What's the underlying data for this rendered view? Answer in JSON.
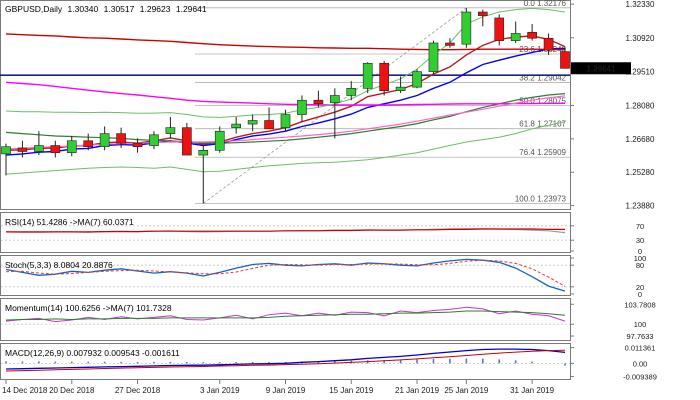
{
  "chart_data": {
    "type": "candlestick",
    "symbol_title": "GBPUSD,Daily",
    "ohlc_text": [
      "1.30340",
      "1.30517",
      "1.29623",
      "1.29641"
    ],
    "current_price": "1.29641",
    "price_axis": {
      "ylim": [
        1.2378,
        1.3242
      ],
      "ticks": [
        "1.32330",
        "1.30920",
        "1.29510",
        "1.28080",
        "1.26680",
        "1.25280",
        "1.23880"
      ]
    },
    "date_labels": [
      "14 Dec 2018",
      "20 Dec 2018",
      "27 Dec 2018",
      "3 Jan 2019",
      "9 Jan 2019",
      "15 Jan 2019",
      "21 Jan 2019",
      "25 Jan 2019",
      "31 Jan 2019"
    ],
    "candles": [
      {
        "o": 1.2605,
        "h": 1.2648,
        "l": 1.2515,
        "c": 1.2635
      },
      {
        "o": 1.263,
        "h": 1.266,
        "l": 1.259,
        "c": 1.2615
      },
      {
        "o": 1.2615,
        "h": 1.27,
        "l": 1.26,
        "c": 1.264
      },
      {
        "o": 1.264,
        "h": 1.266,
        "l": 1.259,
        "c": 1.261
      },
      {
        "o": 1.261,
        "h": 1.268,
        "l": 1.2595,
        "c": 1.266
      },
      {
        "o": 1.266,
        "h": 1.269,
        "l": 1.262,
        "c": 1.2635
      },
      {
        "o": 1.2635,
        "h": 1.272,
        "l": 1.262,
        "c": 1.269
      },
      {
        "o": 1.269,
        "h": 1.2715,
        "l": 1.263,
        "c": 1.265
      },
      {
        "o": 1.265,
        "h": 1.267,
        "l": 1.261,
        "c": 1.2635
      },
      {
        "o": 1.264,
        "h": 1.27,
        "l": 1.2625,
        "c": 1.2685
      },
      {
        "o": 1.269,
        "h": 1.276,
        "l": 1.267,
        "c": 1.2715
      },
      {
        "o": 1.2715,
        "h": 1.2735,
        "l": 1.26,
        "c": 1.26
      },
      {
        "o": 1.26,
        "h": 1.264,
        "l": 1.2397,
        "c": 1.262
      },
      {
        "o": 1.262,
        "h": 1.272,
        "l": 1.261,
        "c": 1.27
      },
      {
        "o": 1.2715,
        "h": 1.276,
        "l": 1.269,
        "c": 1.273
      },
      {
        "o": 1.273,
        "h": 1.277,
        "l": 1.27,
        "c": 1.2745
      },
      {
        "o": 1.2745,
        "h": 1.28,
        "l": 1.271,
        "c": 1.271
      },
      {
        "o": 1.2715,
        "h": 1.279,
        "l": 1.27,
        "c": 1.277
      },
      {
        "o": 1.277,
        "h": 1.285,
        "l": 1.274,
        "c": 1.283
      },
      {
        "o": 1.283,
        "h": 1.287,
        "l": 1.28,
        "c": 1.2815
      },
      {
        "o": 1.282,
        "h": 1.288,
        "l": 1.267,
        "c": 1.285
      },
      {
        "o": 1.285,
        "h": 1.291,
        "l": 1.283,
        "c": 1.288
      },
      {
        "o": 1.288,
        "h": 1.299,
        "l": 1.286,
        "c": 1.2985
      },
      {
        "o": 1.2985,
        "h": 1.2995,
        "l": 1.285,
        "c": 1.287
      },
      {
        "o": 1.287,
        "h": 1.293,
        "l": 1.286,
        "c": 1.2885
      },
      {
        "o": 1.2885,
        "h": 1.296,
        "l": 1.288,
        "c": 1.295
      },
      {
        "o": 1.295,
        "h": 1.308,
        "l": 1.294,
        "c": 1.307
      },
      {
        "o": 1.307,
        "h": 1.309,
        "l": 1.305,
        "c": 1.306
      },
      {
        "o": 1.3065,
        "h": 1.3217,
        "l": 1.305,
        "c": 1.32
      },
      {
        "o": 1.32,
        "h": 1.321,
        "l": 1.314,
        "c": 1.3185
      },
      {
        "o": 1.3175,
        "h": 1.319,
        "l": 1.306,
        "c": 1.308
      },
      {
        "o": 1.308,
        "h": 1.316,
        "l": 1.307,
        "c": 1.311
      },
      {
        "o": 1.3115,
        "h": 1.315,
        "l": 1.308,
        "c": 1.309
      },
      {
        "o": 1.309,
        "h": 1.311,
        "l": 1.302,
        "c": 1.304
      },
      {
        "o": 1.3034,
        "h": 1.3052,
        "l": 1.2962,
        "c": 1.2964
      }
    ],
    "fib_levels": [
      {
        "label": "0.0  1.32176",
        "value": 1.32176
      },
      {
        "label": "23.6  1.30240",
        "value": 1.3024
      },
      {
        "label": "38.2  1.29042",
        "value": 1.29042
      },
      {
        "label": "50.0  1.28075",
        "value": 1.28075
      },
      {
        "label": "61.8  1.27107",
        "value": 1.27107
      },
      {
        "label": "76.4  1.25909",
        "value": 1.25909
      },
      {
        "label": "100.0  1.23973",
        "value": 1.23973
      }
    ],
    "fib_anchor": {
      "low_index": 12,
      "high_index": 28
    },
    "horizontal_line": {
      "value": 1.2935,
      "color": "#1a237e"
    },
    "ma_lines": [
      {
        "color": "#0000ff",
        "width": 1.4,
        "values": [
          1.26,
          1.2605,
          1.2612,
          1.2615,
          1.2625,
          1.2628,
          1.264,
          1.2644,
          1.2642,
          1.265,
          1.266,
          1.265,
          1.264,
          1.2648,
          1.2665,
          1.268,
          1.2688,
          1.27,
          1.272,
          1.2735,
          1.2752,
          1.2772,
          1.28,
          1.2815,
          1.283,
          1.285,
          1.288,
          1.2905,
          1.2945,
          1.298,
          1.2998,
          1.3015,
          1.303,
          1.3045,
          1.3048
        ]
      },
      {
        "color": "#b71c1c",
        "width": 1.4,
        "values": [
          1.262,
          1.2622,
          1.2628,
          1.263,
          1.2638,
          1.264,
          1.2652,
          1.2655,
          1.265,
          1.266,
          1.2672,
          1.266,
          1.2645,
          1.2655,
          1.2675,
          1.269,
          1.27,
          1.2715,
          1.274,
          1.276,
          1.278,
          1.2805,
          1.2845,
          1.286,
          1.2875,
          1.29,
          1.294,
          1.297,
          1.302,
          1.306,
          1.3085,
          1.3095,
          1.31,
          1.3085,
          1.3055
        ]
      },
      {
        "color": "#2e7d32",
        "width": 1.2,
        "values": [
          1.2695,
          1.269,
          1.2685,
          1.268,
          1.2678,
          1.2675,
          1.2673,
          1.267,
          1.2665,
          1.2662,
          1.266,
          1.2655,
          1.265,
          1.265,
          1.2652,
          1.2655,
          1.2658,
          1.2662,
          1.2668,
          1.2675,
          1.2682,
          1.269,
          1.27,
          1.271,
          1.272,
          1.2732,
          1.2748,
          1.2762,
          1.2782,
          1.28,
          1.2815,
          1.283,
          1.2842,
          1.2852,
          1.2858
        ]
      },
      {
        "color": "#cc0000",
        "width": 1.4,
        "values": [
          1.3108,
          1.3105,
          1.3102,
          1.31,
          1.3095,
          1.3092,
          1.309,
          1.3087,
          1.3083,
          1.308,
          1.3077,
          1.3072,
          1.3067,
          1.3063,
          1.306,
          1.3057,
          1.3055,
          1.3053,
          1.3052,
          1.305,
          1.3049,
          1.3048,
          1.3048,
          1.3046,
          1.3044,
          1.3043,
          1.3042,
          1.3042,
          1.3043,
          1.3044,
          1.3044,
          1.3044,
          1.3044,
          1.3043,
          1.3042
        ]
      },
      {
        "color": "#ff00ff",
        "width": 1.4,
        "values": [
          1.2905,
          1.29,
          1.2895,
          1.2888,
          1.288,
          1.2872,
          1.2865,
          1.2858,
          1.2852,
          1.2845,
          1.2838,
          1.283,
          1.2825,
          1.2822,
          1.282,
          1.2818,
          1.2815,
          1.2813,
          1.2812,
          1.2811,
          1.281,
          1.281,
          1.281,
          1.281,
          1.2811,
          1.2812,
          1.2813,
          1.2814,
          1.2815,
          1.2815,
          1.2815,
          1.2816,
          1.2816,
          1.2817,
          1.2817
        ]
      },
      {
        "color": "#ff66cc",
        "width": 1.2,
        "values": [
          1.2625,
          1.2628,
          1.2632,
          1.2635,
          1.2638,
          1.2642,
          1.2645,
          1.2648,
          1.265,
          1.2652,
          1.2655,
          1.2655,
          1.2655,
          1.2657,
          1.266,
          1.2665,
          1.267,
          1.2675,
          1.268,
          1.2686,
          1.2692,
          1.27,
          1.271,
          1.272,
          1.273,
          1.2742,
          1.2755,
          1.2768,
          1.278,
          1.2792,
          1.2805,
          1.2818,
          1.283,
          1.284,
          1.2848
        ]
      },
      {
        "color": "#6abf69",
        "width": 1.0,
        "values": [
          1.2785,
          1.2782,
          1.2782,
          1.278,
          1.278,
          1.2778,
          1.278,
          1.2778,
          1.2775,
          1.2776,
          1.2778,
          1.277,
          1.276,
          1.2758,
          1.2762,
          1.2768,
          1.277,
          1.2775,
          1.279,
          1.28,
          1.2815,
          1.2835,
          1.287,
          1.2895,
          1.292,
          1.296,
          1.302,
          1.307,
          1.315,
          1.318,
          1.32,
          1.321,
          1.3215,
          1.321,
          1.32
        ]
      },
      {
        "color": "#6abf69",
        "width": 1.0,
        "values": [
          1.252,
          1.2525,
          1.253,
          1.2535,
          1.254,
          1.2545,
          1.2548,
          1.255,
          1.2548,
          1.2545,
          1.255,
          1.254,
          1.253,
          1.2532,
          1.254,
          1.2548,
          1.2555,
          1.256,
          1.2565,
          1.2568,
          1.257,
          1.2575,
          1.258,
          1.259,
          1.26,
          1.261,
          1.2625,
          1.264,
          1.2655,
          1.2665,
          1.2675,
          1.269,
          1.271,
          1.2725,
          1.274
        ]
      }
    ],
    "rsi": {
      "title": "RSI(14) 51.4286  ->MA(7) 60.0371",
      "ticks": [
        "70",
        "30",
        "0"
      ],
      "ylim": [
        0,
        100
      ],
      "levels": [
        70,
        30
      ],
      "rsi_values": [
        53,
        52,
        52,
        53,
        53,
        52,
        54,
        55,
        54,
        55,
        56,
        54,
        53,
        54,
        55,
        55,
        55,
        56,
        57,
        57,
        58,
        58,
        59,
        58,
        58,
        59,
        60,
        61,
        62,
        62,
        61,
        60,
        58,
        56,
        51
      ],
      "ma_values": [
        53,
        53,
        53,
        53,
        53,
        53,
        54,
        54,
        54,
        55,
        55,
        55,
        55,
        55,
        55,
        55,
        55,
        56,
        56,
        56,
        57,
        57,
        58,
        58,
        58,
        59,
        59,
        60,
        60,
        61,
        61,
        61,
        61,
        60,
        60
      ]
    },
    "stoch": {
      "title": "Stoch(5,3,3) 8.0804 20.8876",
      "ticks": [
        "100",
        "80",
        "20",
        "0"
      ],
      "ylim": [
        0,
        100
      ],
      "levels": [
        80,
        20
      ],
      "k_values": [
        68,
        60,
        52,
        55,
        63,
        60,
        66,
        70,
        64,
        58,
        62,
        58,
        50,
        60,
        72,
        82,
        85,
        80,
        78,
        82,
        84,
        80,
        86,
        84,
        80,
        78,
        86,
        92,
        96,
        94,
        88,
        72,
        48,
        22,
        8
      ],
      "d_values": [
        62,
        63,
        58,
        55,
        57,
        60,
        63,
        65,
        66,
        64,
        61,
        59,
        56,
        56,
        61,
        71,
        80,
        82,
        81,
        80,
        82,
        82,
        83,
        84,
        83,
        81,
        81,
        85,
        91,
        94,
        92,
        85,
        70,
        47,
        21
      ]
    },
    "momentum": {
      "title": "Momentum(14) 100.6256  ->MA(7) 101.7328",
      "ticks": [
        "103.7808",
        "100",
        "97.7633"
      ],
      "ylim": [
        97.2,
        104.4
      ],
      "mom_values": [
        100.6,
        100.9,
        101.1,
        100.5,
        100.8,
        101.3,
        100.9,
        101.4,
        101.0,
        101.3,
        101.6,
        100.9,
        100.8,
        101.2,
        101.7,
        101.0,
        101.8,
        102.1,
        101.6,
        102.1,
        101.7,
        102.3,
        102.2,
        101.6,
        102.5,
        102.2,
        102.6,
        102.8,
        103.2,
        102.9,
        102.0,
        102.5,
        101.9,
        101.6,
        100.6
      ],
      "ma_values": [
        100.8,
        100.9,
        100.9,
        101.0,
        100.9,
        101.0,
        101.0,
        101.1,
        101.1,
        101.1,
        101.2,
        101.2,
        101.2,
        101.2,
        101.2,
        101.2,
        101.3,
        101.5,
        101.6,
        101.7,
        101.8,
        101.9,
        101.9,
        102.0,
        102.1,
        102.1,
        102.2,
        102.3,
        102.5,
        102.5,
        102.4,
        102.3,
        102.2,
        102.0,
        101.7
      ]
    },
    "macd": {
      "title": "MACD(12,26,9) 0.007932 0.009543 -0.001611",
      "ticks": [
        "0.011361",
        "0.00",
        "-0.009389"
      ],
      "ylim": [
        -0.0105,
        0.0125
      ],
      "macd_values": [
        -0.004,
        -0.0038,
        -0.0035,
        -0.0033,
        -0.003,
        -0.0028,
        -0.0025,
        -0.0023,
        -0.0021,
        -0.0018,
        -0.0015,
        -0.0014,
        -0.0013,
        -0.001,
        -0.0007,
        -0.0004,
        -0.0002,
        0.0001,
        0.0008,
        0.0013,
        0.0019,
        0.0026,
        0.0036,
        0.0043,
        0.005,
        0.006,
        0.0072,
        0.0082,
        0.0092,
        0.01,
        0.0103,
        0.0103,
        0.01,
        0.0092,
        0.0079
      ],
      "signal_values": [
        -0.0055,
        -0.0052,
        -0.0049,
        -0.0046,
        -0.0043,
        -0.004,
        -0.0037,
        -0.0034,
        -0.0031,
        -0.0029,
        -0.0026,
        -0.0024,
        -0.0022,
        -0.0019,
        -0.0017,
        -0.0014,
        -0.0012,
        -0.0009,
        -0.0006,
        -0.0002,
        0.0002,
        0.0007,
        0.0013,
        0.0019,
        0.0025,
        0.0032,
        0.004,
        0.0048,
        0.0057,
        0.0066,
        0.0074,
        0.0081,
        0.0087,
        0.0092,
        0.0095
      ]
    },
    "colors": {
      "bull": "#33cc33",
      "bear": "#ee1111",
      "price_badge_bg": "#000000",
      "price_badge_fg": "#ffffff",
      "rsi_line": "#9e9e9e",
      "rsi_ma": "#cc0000",
      "stoch_k": "#1565c0",
      "stoch_d": "#e53935",
      "mom_line": "#cc33cc",
      "mom_ma": "#2e7d32",
      "macd_line": "#0000cc",
      "macd_signal": "#cc0000",
      "macd_hist": "#4a7cd6"
    }
  }
}
